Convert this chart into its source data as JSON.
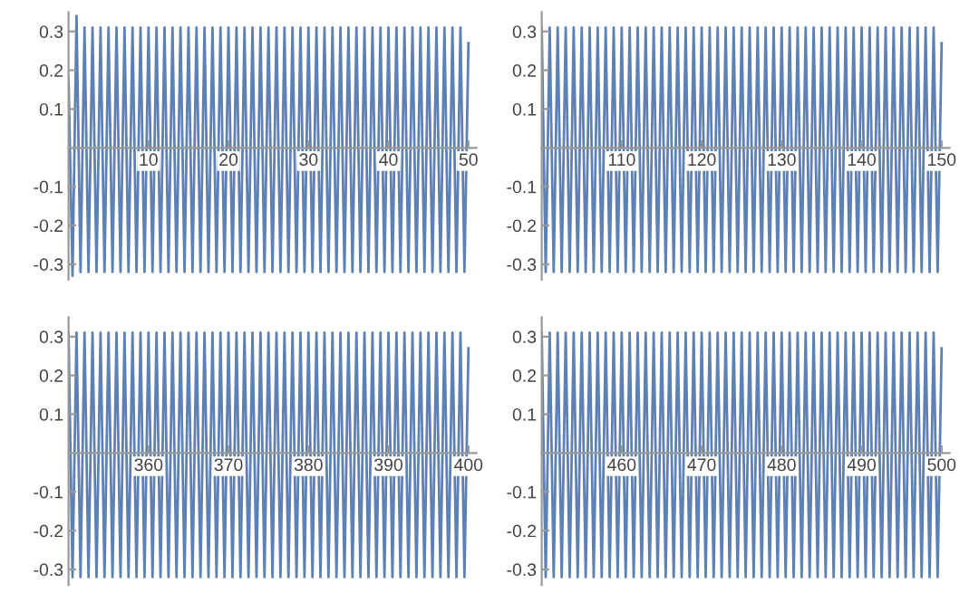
{
  "chart_data": [
    {
      "type": "line",
      "x": [
        0,
        0.5,
        1,
        1.5,
        2,
        2.5,
        3,
        3.5,
        4,
        4.5,
        5,
        5.5,
        6,
        6.5,
        7,
        7.5,
        8,
        8.5,
        9,
        9.5,
        10,
        10.5,
        11,
        11.5,
        12,
        12.5,
        13,
        13.5,
        14,
        14.5,
        15,
        15.5,
        16,
        16.5,
        17,
        17.5,
        18,
        18.5,
        19,
        19.5,
        20,
        20.5,
        21,
        21.5,
        22,
        22.5,
        23,
        23.5,
        24,
        24.5,
        25,
        25.5,
        26,
        26.5,
        27,
        27.5,
        28,
        28.5,
        29,
        29.5,
        30,
        30.5,
        31,
        31.5,
        32,
        32.5,
        33,
        33.5,
        34,
        34.5,
        35,
        35.5,
        36,
        36.5,
        37,
        37.5,
        38,
        38.5,
        39,
        39.5,
        40,
        40.5,
        41,
        41.5,
        42,
        42.5,
        43,
        43.5,
        44,
        44.5,
        45,
        45.5,
        46,
        46.5,
        47,
        47.5,
        48,
        48.5,
        49,
        49.5,
        50
      ],
      "series": [
        {
          "color": "#5e81b5",
          "values": [
            0.18,
            -0.33,
            0.34,
            -0.32,
            0.31,
            -0.32,
            0.31,
            -0.32,
            0.31,
            -0.32,
            0.31,
            -0.32,
            0.31,
            -0.32,
            0.31,
            -0.32,
            0.31,
            -0.32,
            0.31,
            -0.32,
            0.31,
            -0.32,
            0.31,
            -0.32,
            0.31,
            -0.32,
            0.31,
            -0.32,
            0.31,
            -0.32,
            0.31,
            -0.32,
            0.31,
            -0.32,
            0.31,
            -0.32,
            0.31,
            -0.32,
            0.31,
            -0.32,
            0.31,
            -0.32,
            0.31,
            -0.32,
            0.31,
            -0.32,
            0.31,
            -0.32,
            0.31,
            -0.32,
            0.31,
            -0.32,
            0.31,
            -0.32,
            0.31,
            -0.32,
            0.31,
            -0.32,
            0.31,
            -0.32,
            0.31,
            -0.32,
            0.31,
            -0.32,
            0.31,
            -0.32,
            0.31,
            -0.32,
            0.31,
            -0.32,
            0.31,
            -0.32,
            0.31,
            -0.32,
            0.31,
            -0.32,
            0.31,
            -0.32,
            0.31,
            -0.32,
            0.31,
            -0.32,
            0.31,
            -0.32,
            0.31,
            -0.32,
            0.31,
            -0.32,
            0.31,
            -0.32,
            0.31,
            -0.32,
            0.31,
            -0.32,
            0.31,
            -0.32,
            0.31,
            -0.32,
            0.31,
            -0.32,
            0.27
          ]
        }
      ],
      "xlim": [
        0,
        51
      ],
      "ylim": [
        -0.34,
        0.35
      ],
      "xticks": [
        10,
        20,
        30,
        40,
        50
      ],
      "yticks": [
        -0.3,
        -0.2,
        -0.1,
        0.1,
        0.2,
        0.3
      ]
    },
    {
      "type": "line",
      "x": [
        100,
        100.5,
        101,
        101.5,
        102,
        102.5,
        103,
        103.5,
        104,
        104.5,
        105,
        105.5,
        106,
        106.5,
        107,
        107.5,
        108,
        108.5,
        109,
        109.5,
        110,
        110.5,
        111,
        111.5,
        112,
        112.5,
        113,
        113.5,
        114,
        114.5,
        115,
        115.5,
        116,
        116.5,
        117,
        117.5,
        118,
        118.5,
        119,
        119.5,
        120,
        120.5,
        121,
        121.5,
        122,
        122.5,
        123,
        123.5,
        124,
        124.5,
        125,
        125.5,
        126,
        126.5,
        127,
        127.5,
        128,
        128.5,
        129,
        129.5,
        130,
        130.5,
        131,
        131.5,
        132,
        132.5,
        133,
        133.5,
        134,
        134.5,
        135,
        135.5,
        136,
        136.5,
        137,
        137.5,
        138,
        138.5,
        139,
        139.5,
        140,
        140.5,
        141,
        141.5,
        142,
        142.5,
        143,
        143.5,
        144,
        144.5,
        145,
        145.5,
        146,
        146.5,
        147,
        147.5,
        148,
        148.5,
        149,
        149.5,
        150
      ],
      "series": [
        {
          "color": "#5e81b5",
          "values": [
            0.31,
            -0.32,
            0.31,
            -0.32,
            0.31,
            -0.32,
            0.31,
            -0.32,
            0.31,
            -0.32,
            0.31,
            -0.32,
            0.31,
            -0.32,
            0.31,
            -0.32,
            0.31,
            -0.32,
            0.31,
            -0.32,
            0.31,
            -0.32,
            0.31,
            -0.32,
            0.31,
            -0.32,
            0.31,
            -0.32,
            0.31,
            -0.32,
            0.31,
            -0.32,
            0.31,
            -0.32,
            0.31,
            -0.32,
            0.31,
            -0.32,
            0.31,
            -0.32,
            0.31,
            -0.32,
            0.31,
            -0.32,
            0.31,
            -0.32,
            0.31,
            -0.32,
            0.31,
            -0.32,
            0.31,
            -0.32,
            0.31,
            -0.32,
            0.31,
            -0.32,
            0.31,
            -0.32,
            0.31,
            -0.32,
            0.31,
            -0.32,
            0.31,
            -0.32,
            0.31,
            -0.32,
            0.31,
            -0.32,
            0.31,
            -0.32,
            0.31,
            -0.32,
            0.31,
            -0.32,
            0.31,
            -0.32,
            0.31,
            -0.32,
            0.31,
            -0.32,
            0.31,
            -0.32,
            0.31,
            -0.32,
            0.31,
            -0.32,
            0.31,
            -0.32,
            0.31,
            -0.32,
            0.31,
            -0.32,
            0.31,
            -0.32,
            0.31,
            -0.32,
            0.31,
            -0.32,
            0.31,
            -0.32,
            0.27
          ]
        }
      ],
      "xlim": [
        100,
        151
      ],
      "ylim": [
        -0.34,
        0.35
      ],
      "xticks": [
        110,
        120,
        130,
        140,
        150
      ],
      "yticks": [
        -0.3,
        -0.2,
        -0.1,
        0.1,
        0.2,
        0.3
      ]
    },
    {
      "type": "line",
      "x": [
        350,
        350.5,
        351,
        351.5,
        352,
        352.5,
        353,
        353.5,
        354,
        354.5,
        355,
        355.5,
        356,
        356.5,
        357,
        357.5,
        358,
        358.5,
        359,
        359.5,
        360,
        360.5,
        361,
        361.5,
        362,
        362.5,
        363,
        363.5,
        364,
        364.5,
        365,
        365.5,
        366,
        366.5,
        367,
        367.5,
        368,
        368.5,
        369,
        369.5,
        370,
        370.5,
        371,
        371.5,
        372,
        372.5,
        373,
        373.5,
        374,
        374.5,
        375,
        375.5,
        376,
        376.5,
        377,
        377.5,
        378,
        378.5,
        379,
        379.5,
        380,
        380.5,
        381,
        381.5,
        382,
        382.5,
        383,
        383.5,
        384,
        384.5,
        385,
        385.5,
        386,
        386.5,
        387,
        387.5,
        388,
        388.5,
        389,
        389.5,
        390,
        390.5,
        391,
        391.5,
        392,
        392.5,
        393,
        393.5,
        394,
        394.5,
        395,
        395.5,
        396,
        396.5,
        397,
        397.5,
        398,
        398.5,
        399,
        399.5,
        400
      ],
      "series": [
        {
          "color": "#5e81b5",
          "values": [
            0.31,
            -0.32,
            0.31,
            -0.32,
            0.31,
            -0.32,
            0.31,
            -0.32,
            0.31,
            -0.32,
            0.31,
            -0.32,
            0.31,
            -0.32,
            0.31,
            -0.32,
            0.31,
            -0.32,
            0.31,
            -0.32,
            0.31,
            -0.32,
            0.31,
            -0.32,
            0.31,
            -0.32,
            0.31,
            -0.32,
            0.31,
            -0.32,
            0.31,
            -0.32,
            0.31,
            -0.32,
            0.31,
            -0.32,
            0.31,
            -0.32,
            0.31,
            -0.32,
            0.31,
            -0.32,
            0.31,
            -0.32,
            0.31,
            -0.32,
            0.31,
            -0.32,
            0.31,
            -0.32,
            0.31,
            -0.32,
            0.31,
            -0.32,
            0.31,
            -0.32,
            0.31,
            -0.32,
            0.31,
            -0.32,
            0.31,
            -0.32,
            0.31,
            -0.32,
            0.31,
            -0.32,
            0.31,
            -0.32,
            0.31,
            -0.32,
            0.31,
            -0.32,
            0.31,
            -0.32,
            0.31,
            -0.32,
            0.31,
            -0.32,
            0.31,
            -0.32,
            0.31,
            -0.32,
            0.31,
            -0.32,
            0.31,
            -0.32,
            0.31,
            -0.32,
            0.31,
            -0.32,
            0.31,
            -0.32,
            0.31,
            -0.32,
            0.31,
            -0.32,
            0.31,
            -0.32,
            0.31,
            -0.32,
            0.27
          ]
        }
      ],
      "xlim": [
        350,
        401
      ],
      "ylim": [
        -0.34,
        0.35
      ],
      "xticks": [
        360,
        370,
        380,
        390,
        400
      ],
      "yticks": [
        -0.3,
        -0.2,
        -0.1,
        0.1,
        0.2,
        0.3
      ]
    },
    {
      "type": "line",
      "x": [
        450,
        450.5,
        451,
        451.5,
        452,
        452.5,
        453,
        453.5,
        454,
        454.5,
        455,
        455.5,
        456,
        456.5,
        457,
        457.5,
        458,
        458.5,
        459,
        459.5,
        460,
        460.5,
        461,
        461.5,
        462,
        462.5,
        463,
        463.5,
        464,
        464.5,
        465,
        465.5,
        466,
        466.5,
        467,
        467.5,
        468,
        468.5,
        469,
        469.5,
        470,
        470.5,
        471,
        471.5,
        472,
        472.5,
        473,
        473.5,
        474,
        474.5,
        475,
        475.5,
        476,
        476.5,
        477,
        477.5,
        478,
        478.5,
        479,
        479.5,
        480,
        480.5,
        481,
        481.5,
        482,
        482.5,
        483,
        483.5,
        484,
        484.5,
        485,
        485.5,
        486,
        486.5,
        487,
        487.5,
        488,
        488.5,
        489,
        489.5,
        490,
        490.5,
        491,
        491.5,
        492,
        492.5,
        493,
        493.5,
        494,
        494.5,
        495,
        495.5,
        496,
        496.5,
        497,
        497.5,
        498,
        498.5,
        499,
        499.5,
        500
      ],
      "series": [
        {
          "color": "#5e81b5",
          "values": [
            0.31,
            -0.32,
            0.31,
            -0.32,
            0.31,
            -0.32,
            0.31,
            -0.32,
            0.31,
            -0.32,
            0.31,
            -0.32,
            0.31,
            -0.32,
            0.31,
            -0.32,
            0.31,
            -0.32,
            0.31,
            -0.32,
            0.31,
            -0.32,
            0.31,
            -0.32,
            0.31,
            -0.32,
            0.31,
            -0.32,
            0.31,
            -0.32,
            0.31,
            -0.32,
            0.31,
            -0.32,
            0.31,
            -0.32,
            0.31,
            -0.32,
            0.31,
            -0.32,
            0.31,
            -0.32,
            0.31,
            -0.32,
            0.31,
            -0.32,
            0.31,
            -0.32,
            0.31,
            -0.32,
            0.31,
            -0.32,
            0.31,
            -0.32,
            0.31,
            -0.32,
            0.31,
            -0.32,
            0.31,
            -0.32,
            0.31,
            -0.32,
            0.31,
            -0.32,
            0.31,
            -0.32,
            0.31,
            -0.32,
            0.31,
            -0.32,
            0.31,
            -0.32,
            0.31,
            -0.32,
            0.31,
            -0.32,
            0.31,
            -0.32,
            0.31,
            -0.32,
            0.31,
            -0.32,
            0.31,
            -0.32,
            0.31,
            -0.32,
            0.31,
            -0.32,
            0.31,
            -0.32,
            0.31,
            -0.32,
            0.31,
            -0.32,
            0.31,
            -0.32,
            0.31,
            -0.32,
            0.31,
            -0.32,
            0.27
          ]
        }
      ],
      "xlim": [
        450,
        501
      ],
      "ylim": [
        -0.34,
        0.35
      ],
      "xticks": [
        460,
        470,
        480,
        490,
        500
      ],
      "yticks": [
        -0.3,
        -0.2,
        -0.1,
        0.1,
        0.2,
        0.3
      ]
    }
  ]
}
